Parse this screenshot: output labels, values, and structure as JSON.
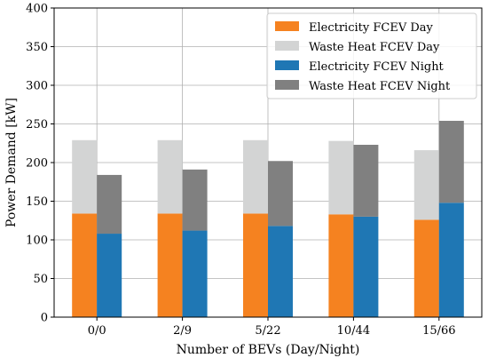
{
  "chart_data": {
    "type": "bar",
    "stacked": true,
    "grouped": true,
    "title": "",
    "xlabel": "Number of BEVs (Day/Night)",
    "ylabel": "Power Demand [kW]",
    "ylim": [
      0,
      400
    ],
    "yticks": [
      0,
      50,
      100,
      150,
      200,
      250,
      300,
      350,
      400
    ],
    "grid": true,
    "legend_position": "top-right",
    "categories": [
      "0/0",
      "2/9",
      "5/22",
      "10/44",
      "15/66"
    ],
    "groups": [
      {
        "name": "Day",
        "series": [
          {
            "name": "Electricity FCEV Day",
            "color": "#f58220",
            "values": [
              134,
              134,
              134,
              133,
              126
            ]
          },
          {
            "name": "Waste Heat FCEV Day",
            "color": "#d3d4d4",
            "values": [
              95,
              95,
              95,
              95,
              90
            ]
          }
        ]
      },
      {
        "name": "Night",
        "series": [
          {
            "name": "Electricity FCEV Night",
            "color": "#1f77b4",
            "values": [
              108,
              112,
              118,
              130,
              148
            ]
          },
          {
            "name": "Waste Heat FCEV Night",
            "color": "#808080",
            "values": [
              76,
              79,
              84,
              93,
              106
            ]
          }
        ]
      }
    ]
  }
}
